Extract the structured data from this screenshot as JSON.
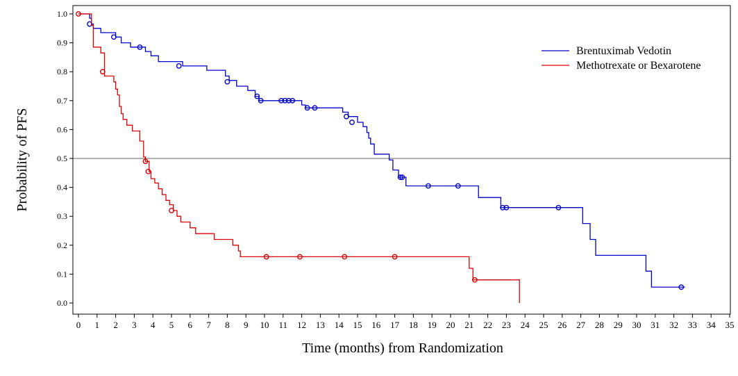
{
  "chart_data": {
    "type": "line",
    "subtype": "kaplan-meier",
    "title": "",
    "xlabel": "Time (months) from Randomization",
    "ylabel": "Probability of  PFS",
    "xlim": [
      0,
      35
    ],
    "ylim": [
      0,
      1
    ],
    "x_ticks": [
      "0",
      "1",
      "2",
      "3",
      "4",
      "5",
      "6",
      "7",
      "8",
      "9",
      "10",
      "11",
      "12",
      "13",
      "14",
      "15",
      "16",
      "17",
      "18",
      "19",
      "20",
      "21",
      "22",
      "23",
      "24",
      "25",
      "26",
      "27",
      "28",
      "29",
      "30",
      "31",
      "32",
      "33",
      "34",
      "35"
    ],
    "y_ticks": [
      "0.0",
      "0.1",
      "0.2",
      "0.3",
      "0.4",
      "0.5",
      "0.6",
      "0.7",
      "0.8",
      "0.9",
      "1.0"
    ],
    "reference_line_y": 0.5,
    "legend_position": "top-right",
    "colors": {
      "blue": "#0000cc",
      "red": "#dd0000",
      "reference": "#666666"
    },
    "series": [
      {
        "name": "Brentuximab Vedotin",
        "color": "#0000cc",
        "steps": [
          [
            0,
            1.0
          ],
          [
            0.6,
            0.985
          ],
          [
            0.7,
            0.965
          ],
          [
            0.8,
            0.95
          ],
          [
            1.2,
            0.935
          ],
          [
            2.0,
            0.92
          ],
          [
            2.3,
            0.9
          ],
          [
            2.8,
            0.885
          ],
          [
            3.6,
            0.87
          ],
          [
            3.9,
            0.855
          ],
          [
            4.3,
            0.835
          ],
          [
            5.6,
            0.82
          ],
          [
            6.9,
            0.805
          ],
          [
            7.9,
            0.785
          ],
          [
            8.1,
            0.77
          ],
          [
            8.5,
            0.75
          ],
          [
            9.1,
            0.735
          ],
          [
            9.5,
            0.715
          ],
          [
            9.7,
            0.7
          ],
          [
            10.0,
            0.7
          ],
          [
            12.0,
            0.685
          ],
          [
            12.2,
            0.675
          ],
          [
            14.2,
            0.66
          ],
          [
            14.5,
            0.645
          ],
          [
            15.0,
            0.625
          ],
          [
            15.3,
            0.61
          ],
          [
            15.5,
            0.59
          ],
          [
            15.6,
            0.57
          ],
          [
            15.7,
            0.55
          ],
          [
            15.9,
            0.515
          ],
          [
            16.7,
            0.495
          ],
          [
            16.9,
            0.46
          ],
          [
            17.2,
            0.435
          ],
          [
            17.6,
            0.405
          ],
          [
            21.5,
            0.365
          ],
          [
            22.7,
            0.33
          ],
          [
            27.1,
            0.275
          ],
          [
            27.5,
            0.22
          ],
          [
            27.8,
            0.165
          ],
          [
            30.5,
            0.11
          ],
          [
            30.8,
            0.055
          ],
          [
            32.6,
            0.055
          ]
        ],
        "censored": [
          [
            0.6,
            0.965
          ],
          [
            1.9,
            0.92
          ],
          [
            3.3,
            0.885
          ],
          [
            5.4,
            0.82
          ],
          [
            8.0,
            0.765
          ],
          [
            9.6,
            0.715
          ],
          [
            9.8,
            0.7
          ],
          [
            10.9,
            0.7
          ],
          [
            11.1,
            0.7
          ],
          [
            11.3,
            0.7
          ],
          [
            11.5,
            0.7
          ],
          [
            12.3,
            0.675
          ],
          [
            12.7,
            0.675
          ],
          [
            14.4,
            0.645
          ],
          [
            14.7,
            0.625
          ],
          [
            17.3,
            0.435
          ],
          [
            17.4,
            0.435
          ],
          [
            18.8,
            0.405
          ],
          [
            20.4,
            0.405
          ],
          [
            22.8,
            0.33
          ],
          [
            23.0,
            0.33
          ],
          [
            25.8,
            0.33
          ],
          [
            32.4,
            0.055
          ]
        ]
      },
      {
        "name": "Methotrexate or Bexarotene",
        "color": "#dd0000",
        "steps": [
          [
            0,
            1.0
          ],
          [
            0.7,
            0.96
          ],
          [
            0.8,
            0.885
          ],
          [
            1.2,
            0.865
          ],
          [
            1.4,
            0.785
          ],
          [
            1.9,
            0.765
          ],
          [
            2.0,
            0.74
          ],
          [
            2.1,
            0.72
          ],
          [
            2.2,
            0.68
          ],
          [
            2.3,
            0.655
          ],
          [
            2.4,
            0.635
          ],
          [
            2.6,
            0.615
          ],
          [
            2.9,
            0.595
          ],
          [
            3.3,
            0.56
          ],
          [
            3.5,
            0.505
          ],
          [
            3.6,
            0.49
          ],
          [
            3.8,
            0.455
          ],
          [
            3.9,
            0.43
          ],
          [
            4.1,
            0.415
          ],
          [
            4.3,
            0.395
          ],
          [
            4.5,
            0.375
          ],
          [
            4.7,
            0.355
          ],
          [
            4.9,
            0.34
          ],
          [
            5.1,
            0.32
          ],
          [
            5.3,
            0.3
          ],
          [
            5.5,
            0.28
          ],
          [
            6.0,
            0.26
          ],
          [
            6.3,
            0.24
          ],
          [
            7.3,
            0.22
          ],
          [
            8.3,
            0.2
          ],
          [
            8.6,
            0.18
          ],
          [
            8.7,
            0.16
          ],
          [
            21.0,
            0.12
          ],
          [
            21.2,
            0.08
          ],
          [
            23.7,
            0.0
          ]
        ],
        "censored": [
          [
            0,
            1.0
          ],
          [
            1.3,
            0.8
          ],
          [
            3.6,
            0.49
          ],
          [
            3.75,
            0.455
          ],
          [
            5.0,
            0.32
          ],
          [
            10.1,
            0.16
          ],
          [
            11.9,
            0.16
          ],
          [
            14.3,
            0.16
          ],
          [
            17.0,
            0.16
          ],
          [
            21.3,
            0.08
          ]
        ]
      }
    ]
  }
}
